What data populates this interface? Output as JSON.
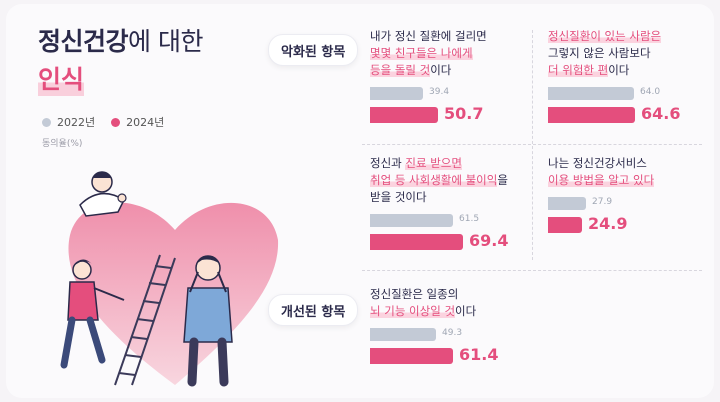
{
  "title": {
    "line1_bold": "정신건강",
    "line1_rest": "에 대한",
    "line2": "인식"
  },
  "legend": [
    {
      "label": "2022년",
      "color": "#c3cad6"
    },
    {
      "label": "2024년",
      "color": "#e44e7d"
    }
  ],
  "unit_label": "동의율(%)",
  "groups": {
    "worsened": "악화된 항목",
    "improved": "개선된 항목"
  },
  "chart_data": {
    "type": "bar",
    "orientation": "horizontal",
    "xlim": [
      0,
      100
    ],
    "series_names": [
      "2022년",
      "2024년"
    ],
    "items": [
      {
        "group": "악화된 항목",
        "lines": [
          [
            "내가 정신 질환에 걸리면"
          ],
          [
            "",
            "몇몇 친구들은 나에게"
          ],
          [
            "",
            "등을 돌릴 것",
            "이다"
          ]
        ],
        "v2022": 39.4,
        "v2024": 50.7
      },
      {
        "group": "악화된 항목",
        "lines": [
          [
            "",
            "정신질환이 있는 사람은"
          ],
          [
            "그렇지 않은 사람보다"
          ],
          [
            "",
            "더 위험한 편",
            "이다"
          ]
        ],
        "v2022": 64.0,
        "v2024": 64.6
      },
      {
        "group": "악화된 항목",
        "lines": [
          [
            "정신과 ",
            "진료 받으면"
          ],
          [
            "",
            "취업 등 사회생활에 불이익",
            "을"
          ],
          [
            "받을 것이다"
          ]
        ],
        "v2022": 61.5,
        "v2024": 69.4
      },
      {
        "group": "악화된 항목",
        "lines": [
          [
            "나는 정신건강서비스"
          ],
          [
            "",
            "이용 방법을 알고 있다"
          ]
        ],
        "v2022": 27.9,
        "v2024": 24.9
      },
      {
        "group": "개선된 항목",
        "lines": [
          [
            "정신질환은 일종의"
          ],
          [
            "",
            "뇌 기능 이상일 것",
            "이다"
          ]
        ],
        "v2022": 49.3,
        "v2024": 61.4
      }
    ]
  }
}
